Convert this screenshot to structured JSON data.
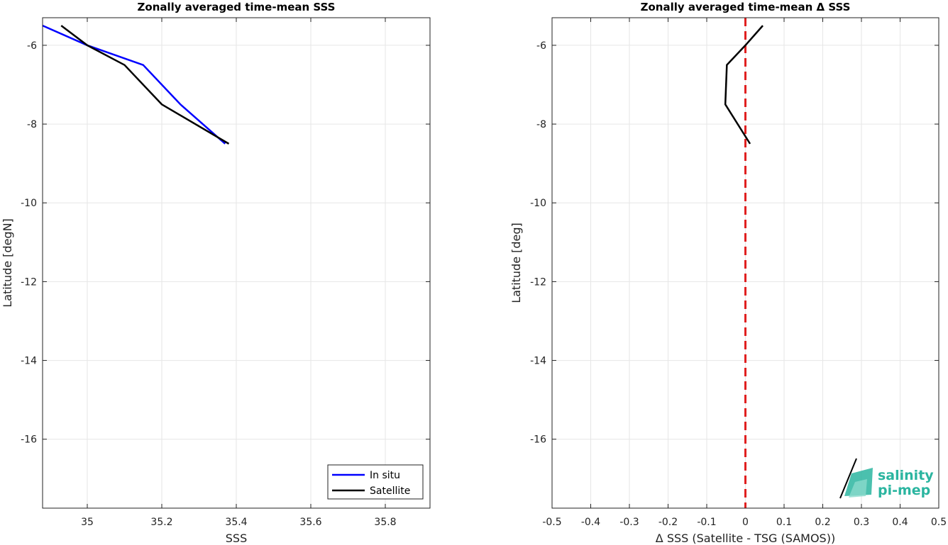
{
  "chart_data": [
    {
      "type": "line",
      "title": "Zonally averaged time-mean SSS",
      "xlabel": "SSS",
      "ylabel": "Latitude [degN]",
      "xlim": [
        34.88,
        35.92
      ],
      "ylim": [
        -17.75,
        -5.3
      ],
      "xticks": [
        35,
        35.2,
        35.4,
        35.6,
        35.8
      ],
      "xtick_labels": [
        "35",
        "35.2",
        "35.4",
        "35.6",
        "35.8"
      ],
      "yticks": [
        -6,
        -8,
        -10,
        -12,
        -14,
        -16
      ],
      "ytick_labels": [
        "-6",
        "-8",
        "-10",
        "-12",
        "-14",
        "-16"
      ],
      "grid": true,
      "legend_position": "bottom-right",
      "series": [
        {
          "name": "In situ",
          "color": "#0000ff",
          "x": [
            34.88,
            35.0,
            35.15,
            35.25,
            35.37
          ],
          "y": [
            -5.5,
            -6.0,
            -6.5,
            -7.5,
            -8.5
          ]
        },
        {
          "name": "Satellite",
          "color": "#000000",
          "x": [
            34.93,
            35.0,
            35.1,
            35.2,
            35.38
          ],
          "y": [
            -5.5,
            -6.0,
            -6.5,
            -7.5,
            -8.5
          ]
        }
      ]
    },
    {
      "type": "line",
      "title": "Zonally averaged time-mean Δ SSS",
      "xlabel": "Δ SSS (Satellite - TSG (SAMOS))",
      "ylabel": "Latitude [deg]",
      "xlim": [
        -0.5,
        0.5
      ],
      "ylim": [
        -17.75,
        -5.3
      ],
      "xticks": [
        -0.5,
        -0.4,
        -0.3,
        -0.2,
        -0.1,
        0,
        0.1,
        0.2,
        0.3,
        0.4,
        0.5
      ],
      "xtick_labels": [
        "-0.5",
        "-0.4",
        "-0.3",
        "-0.2",
        "-0.1",
        "0",
        "0.1",
        "0.2",
        "0.3",
        "0.4",
        "0.5"
      ],
      "yticks": [
        -6,
        -8,
        -10,
        -12,
        -14,
        -16
      ],
      "ytick_labels": [
        "-6",
        "-8",
        "-10",
        "-12",
        "-14",
        "-16"
      ],
      "grid": true,
      "reference_line": {
        "x": 0,
        "color": "#e02020",
        "style": "dashed"
      },
      "series": [
        {
          "color": "#000000",
          "x": [
            0.045,
            0.0,
            -0.048,
            -0.052,
            0.012
          ],
          "y": [
            -5.5,
            -6.0,
            -6.5,
            -7.5,
            -8.5
          ]
        }
      ]
    }
  ],
  "logo": {
    "line1": "salinity",
    "line2": "pi-mep",
    "color": "#2bb5a0"
  }
}
